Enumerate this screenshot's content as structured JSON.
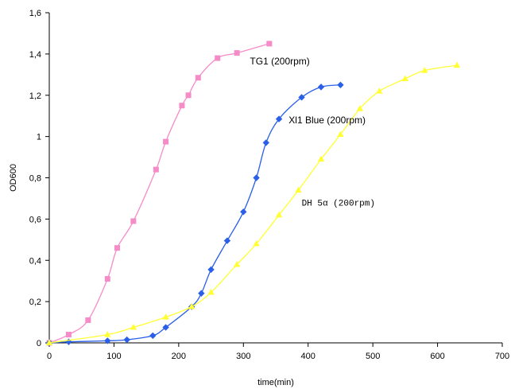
{
  "chart_data": {
    "type": "scatter",
    "title": "",
    "xlabel": "time(min)",
    "ylabel": "OD600",
    "xlim": [
      0,
      700
    ],
    "ylim": [
      0,
      1.6
    ],
    "x_ticks": [
      0,
      100,
      200,
      300,
      400,
      500,
      600,
      700
    ],
    "x_tick_labels": [
      "0",
      "100",
      "200",
      "300",
      "400",
      "500",
      "600",
      "700"
    ],
    "y_ticks": [
      0,
      0.2,
      0.4,
      0.6,
      0.8,
      1.0,
      1.2,
      1.4,
      1.6
    ],
    "y_tick_labels": [
      "0",
      "0,2",
      "0,4",
      "0,6",
      "0,8",
      "1",
      "1,2",
      "1,4",
      "1,6"
    ],
    "grid": false,
    "legend": "none",
    "series": [
      {
        "name": "TG1 (200rpm)",
        "color": "#f58cc8",
        "marker": "square",
        "x": [
          0,
          30,
          60,
          90,
          105,
          130,
          165,
          180,
          205,
          215,
          230,
          260,
          290,
          340
        ],
        "y": [
          0.0,
          0.04,
          0.11,
          0.31,
          0.46,
          0.59,
          0.84,
          0.975,
          1.15,
          1.2,
          1.285,
          1.38,
          1.405,
          1.45
        ]
      },
      {
        "name": "Xl1 Blue (200rpm)",
        "color": "#2a5fe8",
        "marker": "diamond",
        "x": [
          0,
          30,
          90,
          120,
          160,
          180,
          220,
          235,
          250,
          275,
          300,
          320,
          335,
          355,
          390,
          420,
          450
        ],
        "y": [
          0.0,
          0.005,
          0.01,
          0.015,
          0.035,
          0.075,
          0.175,
          0.24,
          0.355,
          0.495,
          0.635,
          0.8,
          0.97,
          1.085,
          1.19,
          1.24,
          1.25
        ]
      },
      {
        "name": "DH 5α  (200rpm)",
        "color": "#ffff33",
        "marker": "triangle",
        "x": [
          0,
          90,
          130,
          180,
          220,
          250,
          290,
          320,
          355,
          385,
          420,
          450,
          480,
          510,
          550,
          580,
          630
        ],
        "y": [
          0.0,
          0.04,
          0.075,
          0.125,
          0.175,
          0.245,
          0.38,
          0.48,
          0.62,
          0.74,
          0.89,
          1.01,
          1.135,
          1.22,
          1.28,
          1.32,
          1.345
        ]
      }
    ],
    "annotations": [
      {
        "text": "TG1 (200rpm)",
        "x": 310,
        "y": 1.35,
        "style": "sans"
      },
      {
        "text": "Xl1 Blue (200rpm)",
        "x": 370,
        "y": 1.065,
        "style": "sans"
      },
      {
        "text": "DH 5α  (200rpm)",
        "x": 390,
        "y": 0.665,
        "style": "mono"
      }
    ]
  }
}
